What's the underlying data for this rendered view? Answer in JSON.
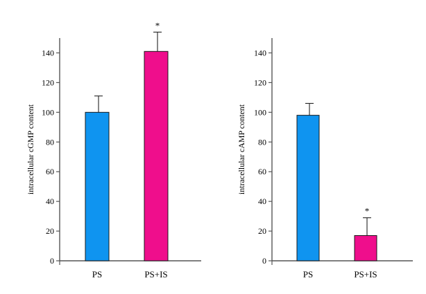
{
  "chart_data": [
    {
      "type": "bar",
      "title": "",
      "xlabel": "",
      "ylabel": "intracellular cGMP content",
      "ylim": [
        0,
        150
      ],
      "yticks": [
        "0",
        "20",
        "40",
        "60",
        "80",
        "100",
        "120",
        "140"
      ],
      "categories": [
        "PS",
        "PS+IS"
      ],
      "values": [
        100,
        141
      ],
      "errors": [
        11,
        13
      ],
      "colors": [
        "#0f94f0",
        "#ef0e8c"
      ],
      "significance": [
        "",
        "*"
      ],
      "grid": false,
      "legend": "none"
    },
    {
      "type": "bar",
      "title": "",
      "xlabel": "",
      "ylabel": "intracellular cAMP content",
      "ylim": [
        0,
        150
      ],
      "yticks": [
        "0",
        "20",
        "40",
        "60",
        "80",
        "100",
        "120",
        "140"
      ],
      "categories": [
        "PS",
        "PS+IS"
      ],
      "values": [
        98,
        17
      ],
      "errors": [
        8,
        12
      ],
      "colors": [
        "#0f94f0",
        "#ef0e8c"
      ],
      "significance": [
        "",
        "*"
      ],
      "grid": false,
      "legend": "none"
    }
  ]
}
